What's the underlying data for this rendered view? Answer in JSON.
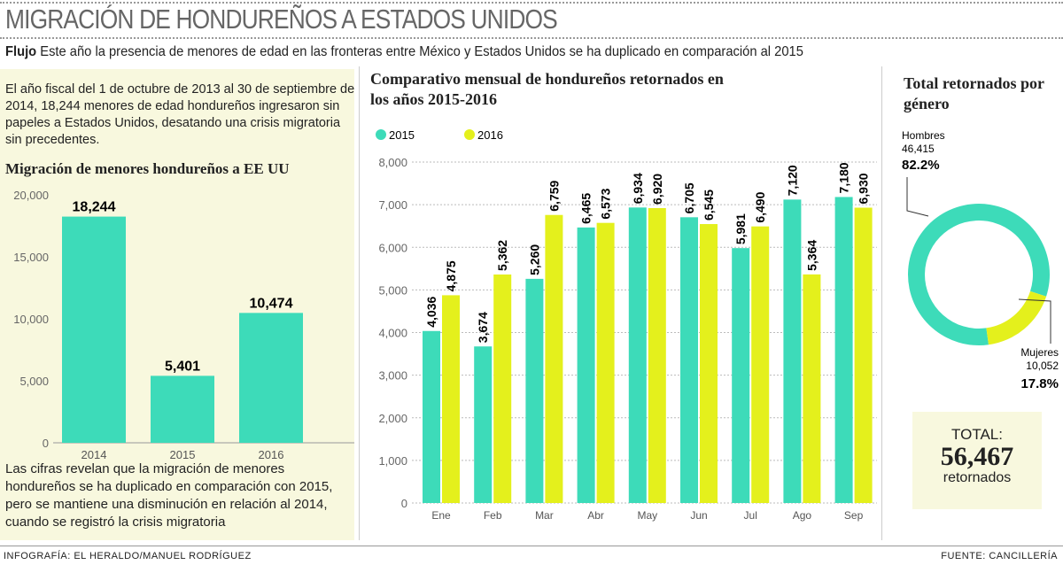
{
  "title": "MIGRACIÓN DE HONDUREÑOS A ESTADOS UNIDOS",
  "subtitle": {
    "lead": "Flujo",
    "text": "Este año la presencia de menores de edad en las fronteras entre México y Estados Unidos se ha duplicado en comparación al 2015"
  },
  "left": {
    "intro": "El año fiscal del 1 de octubre de 2013 al 30 de septiembre de 2014, 18,244 menores de edad hondureños ingresaron sin papeles a Estados Unidos, desatando una crisis migratoria sin precedentes.",
    "outro": "Las cifras revelan que la migración de menores hondureños se ha duplicado en comparación con 2015, pero se mantiene una disminución en relación al 2014, cuando se registró la crisis migratoria"
  },
  "footer": {
    "credit": "INFOGRAFÍA: EL HERALDO/MANUEL RODRÍGUEZ",
    "source": "FUENTE: CANCILLERÍA"
  },
  "total": {
    "label": "TOTAL:",
    "value": "56,467",
    "unit": "retornados"
  },
  "colors": {
    "teal": "#3ddbb9",
    "yellow": "#e4f01c"
  },
  "chart_data": [
    {
      "type": "bar",
      "title": "Migración de menores hondureños a EE UU",
      "categories": [
        "2014",
        "2015",
        "2016"
      ],
      "values": [
        18244,
        5401,
        10474
      ],
      "value_labels": [
        "18,244",
        "5,401",
        "10,474"
      ],
      "ylim": [
        0,
        20000
      ],
      "yticks": [
        "0",
        "5,000",
        "10,000",
        "15,000",
        "20,000"
      ],
      "grid": false
    },
    {
      "type": "bar",
      "title": "Comparativo mensual de hondureños retornados en los años 2015-2016",
      "categories": [
        "Ene",
        "Feb",
        "Mar",
        "Abr",
        "May",
        "Jun",
        "Jul",
        "Ago",
        "Sep"
      ],
      "series": [
        {
          "name": "2015",
          "values": [
            4036,
            3674,
            5260,
            6465,
            6934,
            6705,
            5981,
            7120,
            7180
          ],
          "labels": [
            "4,036",
            "3,674",
            "5,260",
            "6,465",
            "6,934",
            "6,705",
            "5,981",
            "7,120",
            "7,180"
          ]
        },
        {
          "name": "2016",
          "values": [
            4875,
            5362,
            6759,
            6573,
            6920,
            6545,
            6490,
            5364,
            6930
          ],
          "labels": [
            "4,875",
            "5,362",
            "6,759",
            "6,573",
            "6,920",
            "6,545",
            "6,490",
            "5,364",
            "6,930"
          ]
        }
      ],
      "ylim": [
        0,
        8000
      ],
      "yticks": [
        "0",
        "1,000",
        "2,000",
        "3,000",
        "4,000",
        "5,000",
        "6,000",
        "7,000",
        "8,000"
      ],
      "grid": true,
      "legend": "top-left"
    },
    {
      "type": "pie",
      "title": "Total retornados por género",
      "slices": [
        {
          "name": "Hombres",
          "value": 46415,
          "value_label": "46,415",
          "percent": "82.2%"
        },
        {
          "name": "Mujeres",
          "value": 10052,
          "value_label": "10,052",
          "percent": "17.8%"
        }
      ]
    }
  ]
}
